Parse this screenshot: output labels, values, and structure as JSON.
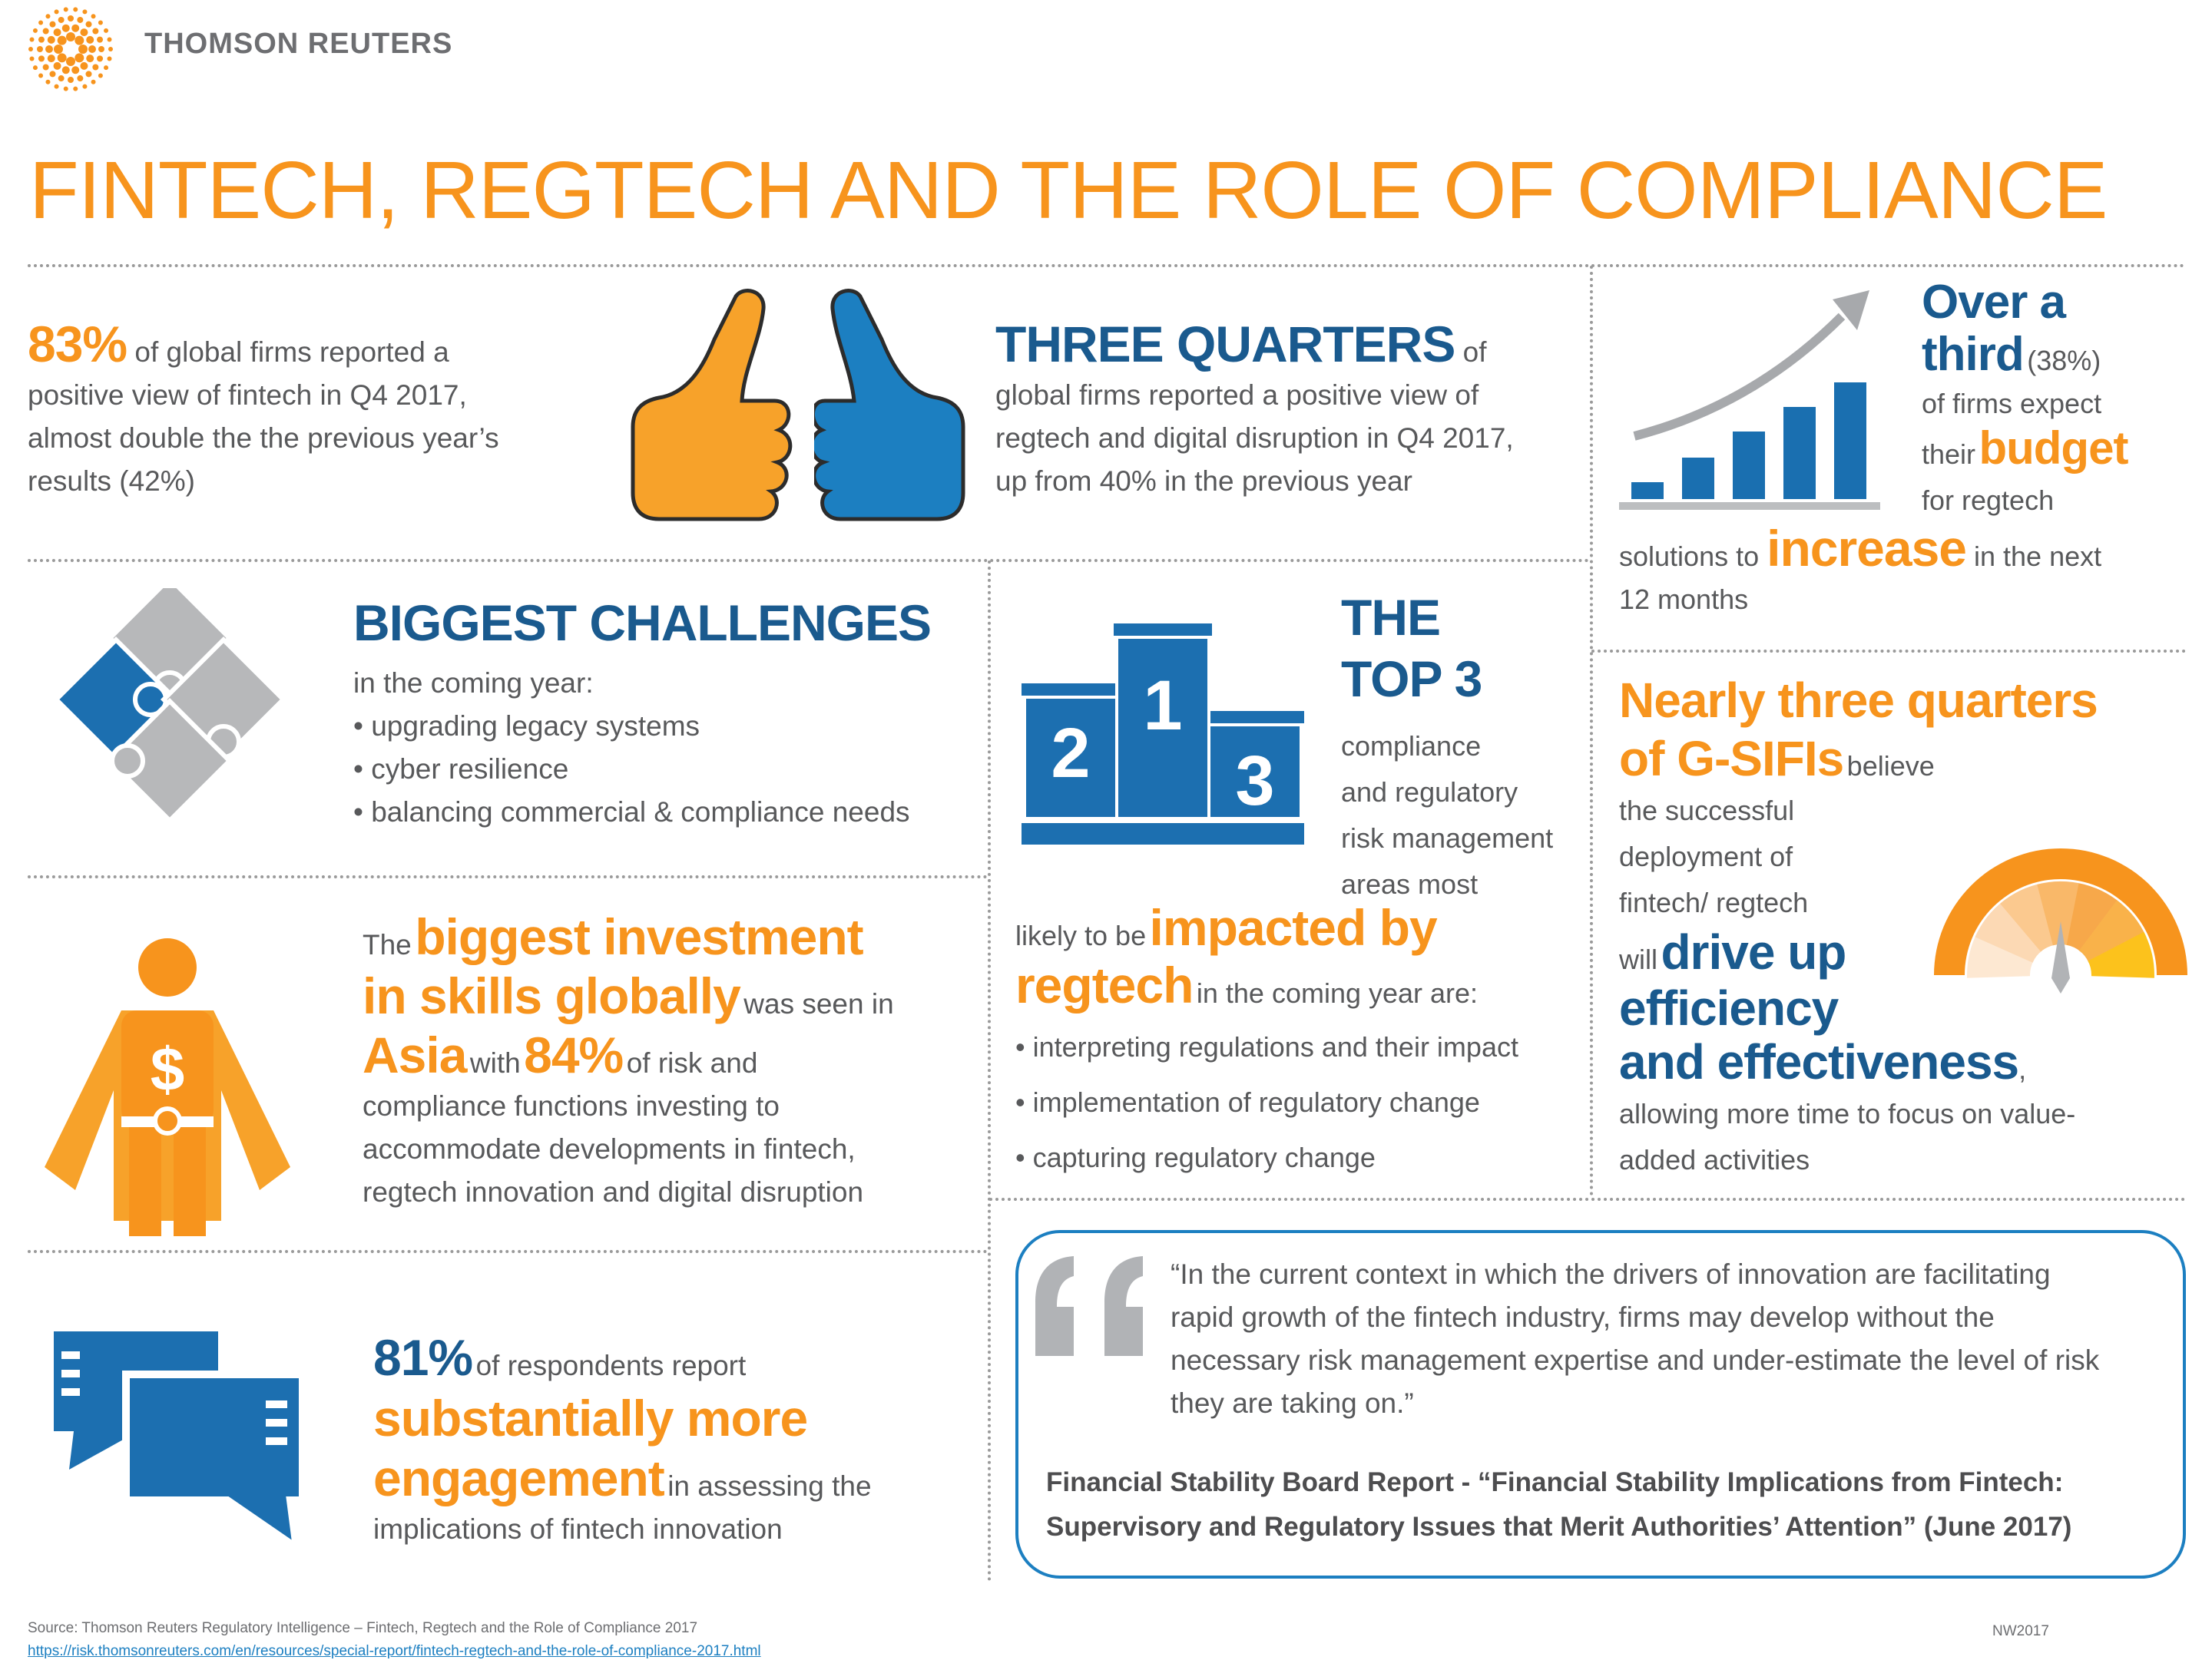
{
  "brand": {
    "name": "THOMSON REUTERS"
  },
  "title": "FINTECH, REGTECH AND THE ROLE OF COMPLIANCE",
  "colors": {
    "orange": "#f7941d",
    "blue": "#1a5a8e",
    "mid_blue": "#1c7fc1",
    "gray_text": "#58595b",
    "light_gray": "#b9b9b9"
  },
  "stat_83": {
    "value": "83%",
    "line1": "of global firms reported a",
    "line2": "positive view of fintech in Q4 2017,",
    "line3": "almost double the the previous year’s",
    "line4": "results (42%)"
  },
  "three_quarters": {
    "headline": "THREE QUARTERS",
    "tail": "of",
    "line1": "global firms reported a positive view of",
    "line2": "regtech and digital disruption in Q4 2017,",
    "line3": "up from 40% in the previous year"
  },
  "third": {
    "headline1": "Over a",
    "headline2": "third",
    "pct": "(38%)",
    "line1": "of firms expect",
    "their": "their",
    "budget": "budget",
    "for_regtech": "for regtech",
    "solutions_to": "solutions to",
    "increase": "increase",
    "in_the_next": "in the next",
    "months": "12 months"
  },
  "challenges": {
    "headline": "BIGGEST CHALLENGES",
    "intro": "in the coming year:",
    "items": [
      "• upgrading legacy systems",
      "• cyber resilience",
      "• balancing commercial & compliance needs"
    ]
  },
  "top3": {
    "headline1": "THE",
    "headline2": "TOP 3",
    "line1": "compliance",
    "line2": "and regulatory",
    "line3": "risk management",
    "line4": "areas most",
    "likely": "likely to be",
    "impacted": "impacted by",
    "regtech": "regtech",
    "coming": "in the coming year are:",
    "items": [
      "• interpreting regulations and their impact",
      "• implementation of regulatory change",
      "• capturing regulatory change"
    ],
    "podium_labels": [
      "2",
      "1",
      "3"
    ]
  },
  "gsifi": {
    "headline1": "Nearly three quarters",
    "headline2": "of G-SIFIs",
    "believe": "believe",
    "line1": "the successful",
    "line2": "deployment of",
    "line3": "fintech/ regtech",
    "will": "will",
    "drive_up": "drive up",
    "efficiency": "efficiency",
    "effectiveness": "and effectiveness",
    "comma": ",",
    "line4": "allowing more time to focus on value-",
    "line5": "added activities"
  },
  "investment": {
    "the": "The",
    "h1": "biggest investment",
    "h2": "in skills globally",
    "was_seen": "was seen in",
    "asia": "Asia",
    "with": "with",
    "pct": "84%",
    "of_risk": "of risk and",
    "line1": "compliance functions investing to",
    "line2": "accommodate developments in fintech,",
    "line3": "regtech innovation and digital disruption",
    "icon_symbol": "$"
  },
  "engagement": {
    "value": "81%",
    "tail": "of respondents report",
    "h1": "substantially more",
    "h2": "engagement",
    "in_assessing": "in assessing the",
    "line1": "implications of fintech innovation"
  },
  "quote": {
    "text1": "“In the current context in which the drivers of innovation are facilitating",
    "text2": "rapid growth of the fintech industry, firms may develop without the",
    "text3": "necessary risk management expertise and under-estimate the level of risk",
    "text4": "they are taking on.”",
    "source1": "Financial Stability Board Report - “Financial Stability Implications from Fintech:",
    "source2": "Supervisory and Regulatory Issues that Merit Authorities’ Attention” (June 2017)"
  },
  "footer": {
    "source": "Source: Thomson Reuters Regulatory Intelligence – Fintech, Regtech and the Role of Compliance 2017",
    "url": "https://risk.thomsonreuters.com/en/resources/special-report/fintech-regtech-and-the-role-of-compliance-2017.html",
    "code": "NW2017"
  }
}
